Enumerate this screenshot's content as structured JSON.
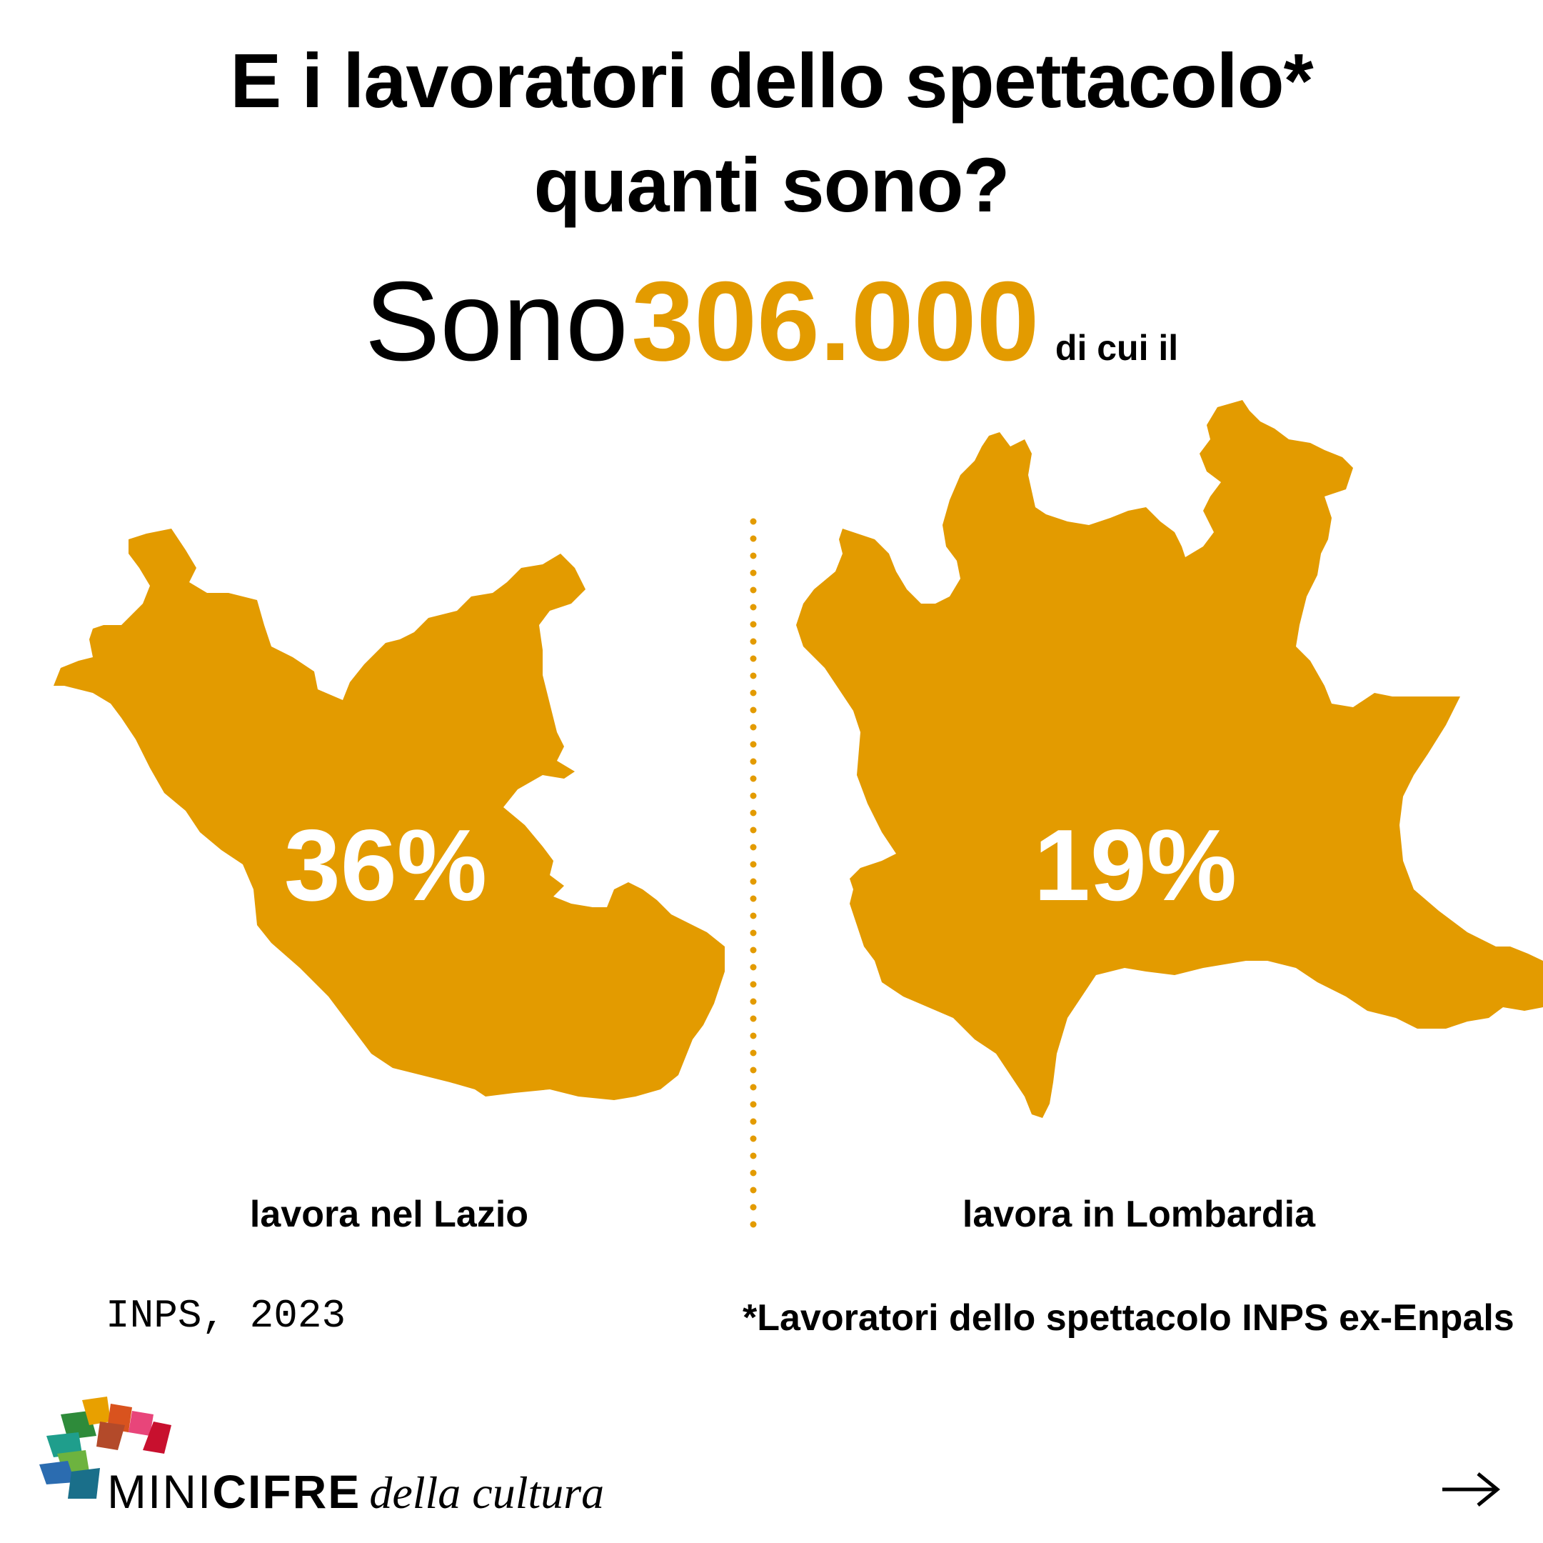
{
  "title_line1": "E i lavoratori dello spettacolo*",
  "title_line2": "quanti sono?",
  "headline": {
    "prefix": "Sono",
    "total": "306.000",
    "suffix": "di cui il"
  },
  "regions": [
    {
      "percent": "36%",
      "label": "lavora nel Lazio"
    },
    {
      "percent": "19%",
      "label": "lavora in Lombardia"
    }
  ],
  "source": "INPS, 2023",
  "footnote": "*Lavoratori dello spettacolo INPS ex-Enpals",
  "logo": {
    "mini": "MINI",
    "cifre": "CIFRE",
    "della": "della cultura"
  },
  "colors": {
    "accent": "#E39B00",
    "text": "#000000",
    "on_accent": "#FFFFFF"
  },
  "icons": {
    "next": "arrow-right-icon"
  }
}
